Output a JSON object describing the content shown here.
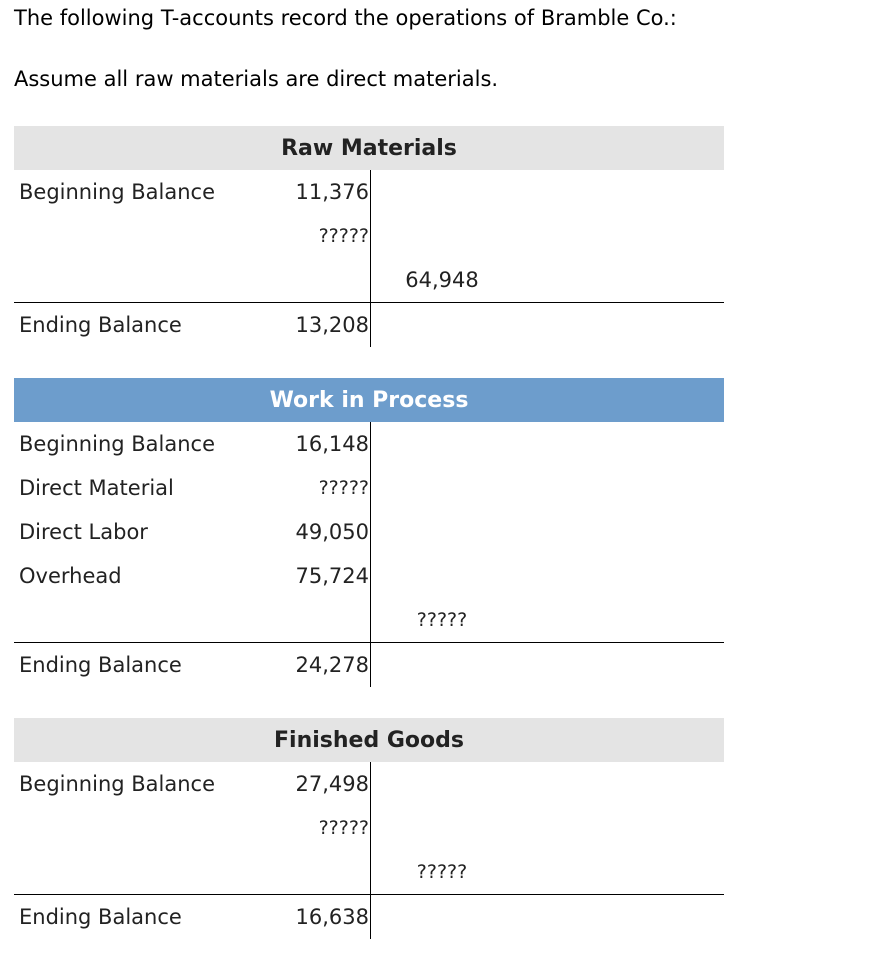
{
  "intro": {
    "line1": "The following T-accounts record the operations of Bramble Co.:",
    "line2": "Assume all raw materials are direct materials."
  },
  "raw_materials": {
    "title": "Raw Materials",
    "beginning_label": "Beginning Balance",
    "beginning_value": "11,376",
    "debit_unknown": "?????",
    "credit_value": "64,948",
    "ending_label": "Ending Balance",
    "ending_value": "13,208"
  },
  "work_in_process": {
    "title": "Work in Process",
    "beginning_label": "Beginning Balance",
    "beginning_value": "16,148",
    "direct_material_label": "Direct Material",
    "direct_material_value": "?????",
    "direct_labor_label": "Direct Labor",
    "direct_labor_value": "49,050",
    "overhead_label": "Overhead",
    "overhead_value": "75,724",
    "credit_value": "?????",
    "ending_label": "Ending Balance",
    "ending_value": "24,278"
  },
  "finished_goods": {
    "title": "Finished Goods",
    "beginning_label": "Beginning Balance",
    "beginning_value": "27,498",
    "debit_unknown": "?????",
    "credit_value": "?????",
    "ending_label": "Ending Balance",
    "ending_value": "16,638"
  },
  "colors": {
    "header_gray": "#e4e4e4",
    "header_blue": "#6d9dcc"
  }
}
